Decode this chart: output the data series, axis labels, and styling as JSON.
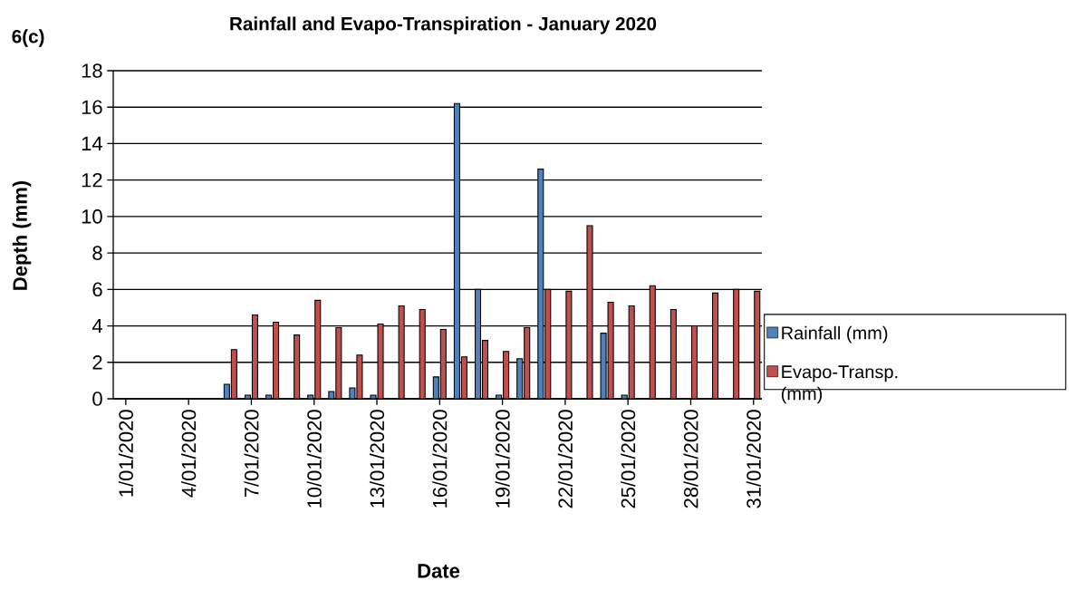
{
  "chart_data": {
    "type": "bar",
    "title": "Rainfall and Evapo-Transpiration - January 2020",
    "xlabel": "Date",
    "ylabel": "Depth (mm)",
    "annotations": [
      "6(c)"
    ],
    "categories": [
      "1/01/2020",
      null,
      null,
      "4/01/2020",
      null,
      null,
      "7/01/2020",
      null,
      null,
      "10/01/2020",
      null,
      null,
      "13/01/2020",
      null,
      null,
      "16/01/2020",
      null,
      null,
      "19/01/2020",
      null,
      null,
      "22/01/2020",
      null,
      null,
      "25/01/2020",
      null,
      null,
      "28/01/2020",
      null,
      null,
      "31/01/2020"
    ],
    "series": [
      {
        "name": "Rainfall (mm)",
        "color": "#4f81bd",
        "values": [
          null,
          null,
          null,
          null,
          null,
          0.8,
          0.2,
          0.2,
          null,
          0.2,
          0.4,
          0.6,
          0.2,
          null,
          null,
          1.2,
          16.2,
          6.0,
          0.2,
          2.2,
          12.6,
          null,
          null,
          3.6,
          0.2,
          null,
          null,
          null,
          null,
          null,
          null
        ]
      },
      {
        "name": "Evapo-Transp. (mm)",
        "color": "#c0504d",
        "values": [
          null,
          null,
          null,
          null,
          null,
          2.7,
          4.6,
          4.2,
          3.5,
          5.4,
          3.9,
          2.4,
          4.1,
          5.1,
          4.9,
          3.8,
          2.3,
          3.2,
          2.6,
          3.9,
          6.0,
          5.9,
          9.5,
          5.3,
          5.1,
          6.2,
          4.9,
          4.0,
          5.8,
          6.0,
          5.9
        ]
      }
    ],
    "ylim": [
      0,
      18
    ],
    "yticks": [
      0,
      2,
      4,
      6,
      8,
      10,
      12,
      14,
      16,
      18
    ],
    "grid": "y",
    "legend": "right"
  }
}
